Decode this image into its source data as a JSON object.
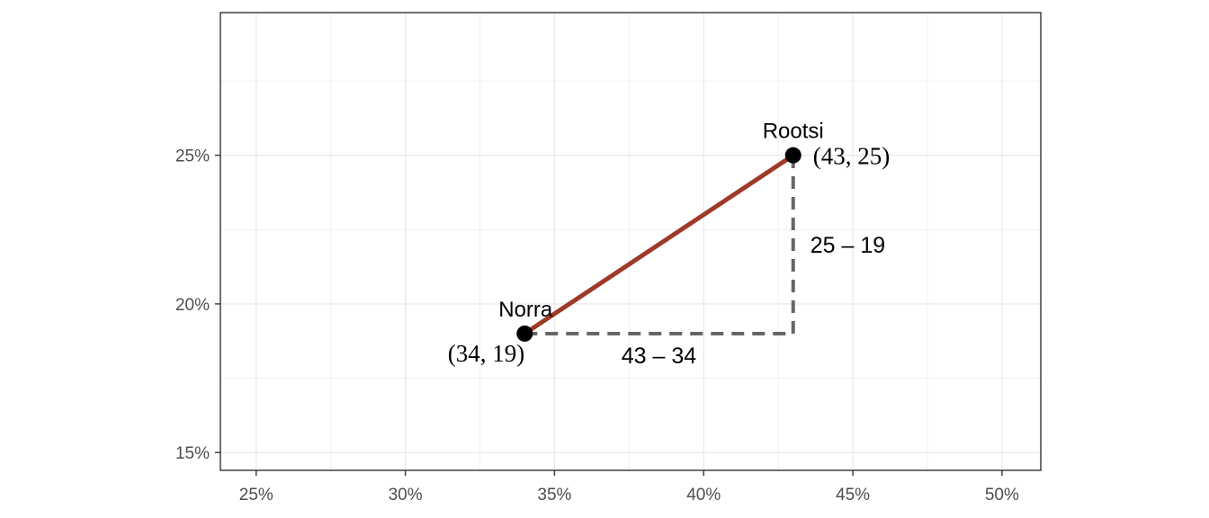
{
  "chart_data": {
    "type": "scatter",
    "title": "",
    "xlabel": "",
    "ylabel": "",
    "xlim": [
      23.8,
      51.3
    ],
    "ylim": [
      14.4,
      29.8
    ],
    "x_ticks": [
      25,
      30,
      35,
      40,
      45,
      50
    ],
    "x_tick_labels": [
      "25%",
      "30%",
      "35%",
      "40%",
      "45%",
      "50%"
    ],
    "y_ticks": [
      15,
      20,
      25
    ],
    "y_tick_labels": [
      "15%",
      "20%",
      "25%"
    ],
    "grid": true,
    "points": [
      {
        "name": "Norra",
        "x": 34,
        "y": 19,
        "coord_label": "(34, 19)"
      },
      {
        "name": "Rootsi",
        "x": 43,
        "y": 25,
        "coord_label": "(43, 25)"
      }
    ],
    "segment_color": "#9e3a26",
    "guide_color": "#666666",
    "differences": {
      "horizontal": "43 – 34",
      "vertical": "25 – 19"
    }
  }
}
